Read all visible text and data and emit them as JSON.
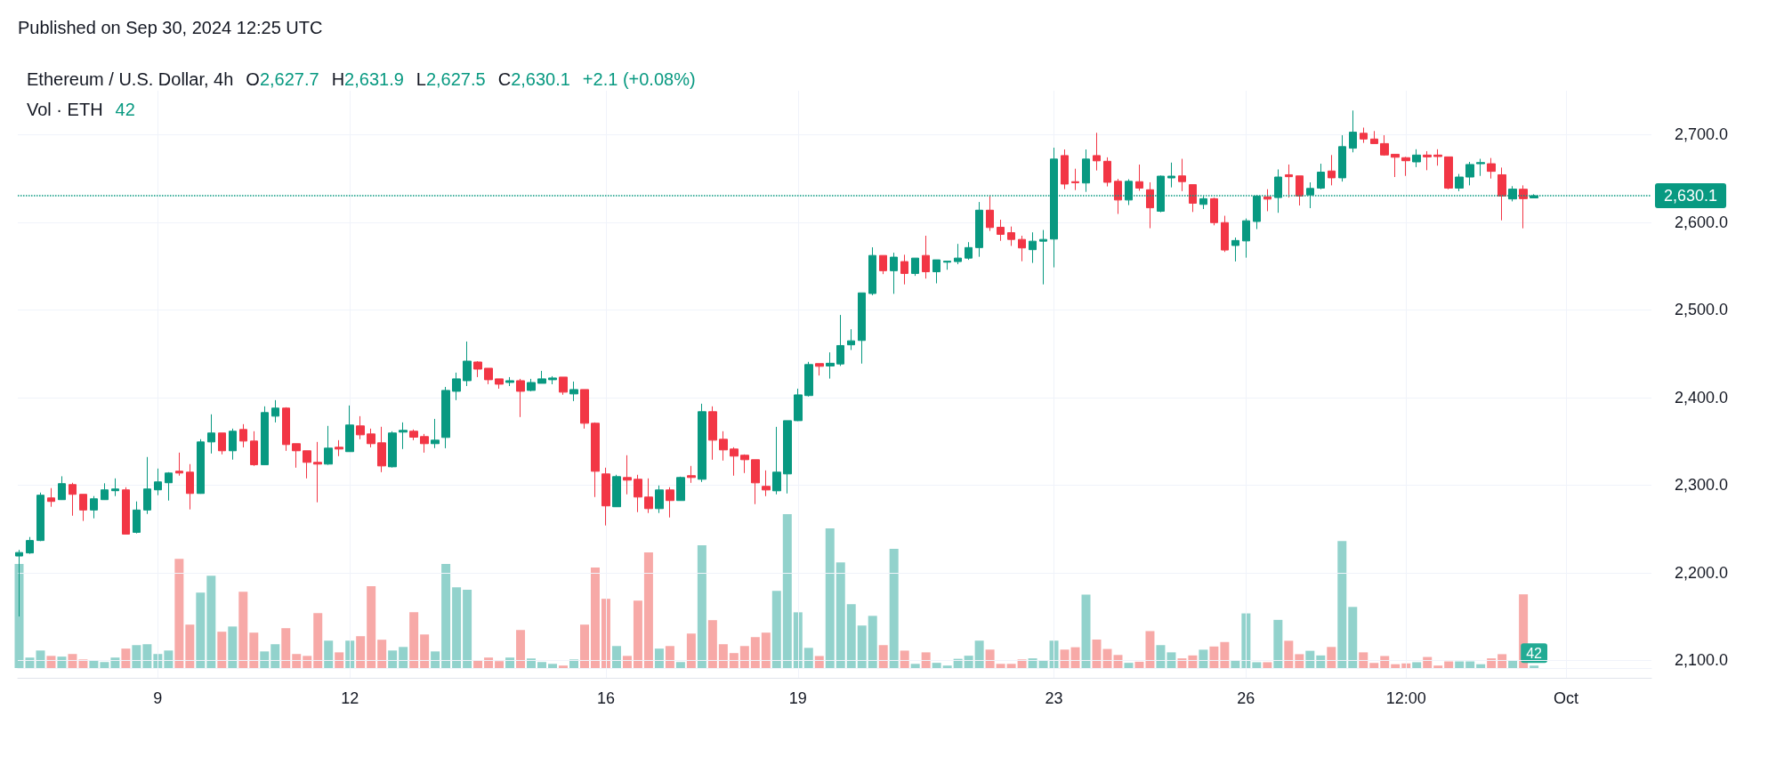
{
  "chart_data": [
    {
      "type": "candlestick",
      "title": "Ethereum / U.S. Dollar, 4h",
      "subtitle": "Published on Sep 30, 2024 12:25 UTC",
      "annotations": [
        "O2,627.7",
        "H2,631.9",
        "L2,627.5",
        "C2,630.1",
        "+2.1 (+0.08%)"
      ],
      "x": [
        "2024-09-06T20:00",
        "2024-09-07T00:00",
        "2024-09-07T04:00",
        "2024-09-07T08:00",
        "2024-09-07T12:00",
        "2024-09-07T16:00",
        "2024-09-07T20:00",
        "2024-09-08T00:00",
        "2024-09-08T04:00",
        "2024-09-08T08:00",
        "2024-09-08T12:00",
        "2024-09-08T16:00",
        "2024-09-08T20:00",
        "2024-09-09T00:00",
        "2024-09-09T04:00",
        "2024-09-09T08:00",
        "2024-09-09T12:00",
        "2024-09-09T16:00",
        "2024-09-09T20:00",
        "2024-09-10T00:00",
        "2024-09-10T04:00",
        "2024-09-10T08:00",
        "2024-09-10T12:00",
        "2024-09-10T16:00",
        "2024-09-10T20:00",
        "2024-09-11T00:00",
        "2024-09-11T04:00",
        "2024-09-11T08:00",
        "2024-09-11T12:00",
        "2024-09-11T16:00",
        "2024-09-11T20:00",
        "2024-09-12T00:00",
        "2024-09-12T04:00",
        "2024-09-12T08:00",
        "2024-09-12T12:00",
        "2024-09-12T16:00",
        "2024-09-12T20:00",
        "2024-09-13T00:00",
        "2024-09-13T04:00",
        "2024-09-13T08:00",
        "2024-09-13T12:00",
        "2024-09-13T16:00",
        "2024-09-13T20:00",
        "2024-09-14T00:00",
        "2024-09-14T04:00",
        "2024-09-14T08:00",
        "2024-09-14T12:00",
        "2024-09-14T16:00",
        "2024-09-14T20:00",
        "2024-09-15T00:00",
        "2024-09-15T04:00",
        "2024-09-15T08:00",
        "2024-09-15T12:00",
        "2024-09-15T16:00",
        "2024-09-15T20:00",
        "2024-09-16T00:00",
        "2024-09-16T04:00",
        "2024-09-16T08:00",
        "2024-09-16T12:00",
        "2024-09-16T16:00",
        "2024-09-16T20:00",
        "2024-09-17T00:00",
        "2024-09-17T04:00",
        "2024-09-17T08:00",
        "2024-09-17T12:00",
        "2024-09-17T16:00",
        "2024-09-17T20:00",
        "2024-09-18T00:00",
        "2024-09-18T04:00",
        "2024-09-18T08:00",
        "2024-09-18T12:00",
        "2024-09-18T16:00",
        "2024-09-18T20:00",
        "2024-09-19T00:00",
        "2024-09-19T04:00",
        "2024-09-19T08:00",
        "2024-09-19T12:00",
        "2024-09-19T16:00",
        "2024-09-19T20:00",
        "2024-09-20T00:00",
        "2024-09-20T04:00",
        "2024-09-20T08:00",
        "2024-09-20T12:00",
        "2024-09-20T16:00",
        "2024-09-20T20:00",
        "2024-09-21T00:00",
        "2024-09-21T04:00",
        "2024-09-21T08:00",
        "2024-09-21T12:00",
        "2024-09-21T16:00",
        "2024-09-21T20:00",
        "2024-09-22T00:00",
        "2024-09-22T04:00",
        "2024-09-22T08:00",
        "2024-09-22T12:00",
        "2024-09-22T16:00",
        "2024-09-22T20:00",
        "2024-09-23T00:00",
        "2024-09-23T04:00",
        "2024-09-23T08:00",
        "2024-09-23T12:00",
        "2024-09-23T16:00",
        "2024-09-23T20:00",
        "2024-09-24T00:00",
        "2024-09-24T04:00",
        "2024-09-24T08:00",
        "2024-09-24T12:00",
        "2024-09-24T16:00",
        "2024-09-24T20:00",
        "2024-09-25T00:00",
        "2024-09-25T04:00",
        "2024-09-25T08:00",
        "2024-09-25T12:00",
        "2024-09-25T16:00",
        "2024-09-25T20:00",
        "2024-09-26T00:00",
        "2024-09-26T04:00",
        "2024-09-26T08:00",
        "2024-09-26T12:00",
        "2024-09-26T16:00",
        "2024-09-26T20:00",
        "2024-09-27T00:00",
        "2024-09-27T04:00",
        "2024-09-27T08:00",
        "2024-09-27T12:00",
        "2024-09-27T16:00",
        "2024-09-27T20:00",
        "2024-09-28T00:00",
        "2024-09-28T04:00",
        "2024-09-28T08:00",
        "2024-09-28T12:00",
        "2024-09-28T16:00",
        "2024-09-28T20:00",
        "2024-09-29T00:00",
        "2024-09-29T04:00",
        "2024-09-29T08:00",
        "2024-09-29T12:00",
        "2024-09-29T16:00",
        "2024-09-29T20:00",
        "2024-09-30T00:00",
        "2024-09-30T04:00",
        "2024-09-30T08:00",
        "2024-09-30T12:00"
      ],
      "ohlc": [
        [
          2219,
          2226,
          2150,
          2223
        ],
        [
          2222.5,
          2240.7,
          2221.5,
          2236.7
        ],
        [
          2236.7,
          2291.4,
          2236,
          2288.4
        ],
        [
          2285.3,
          2296.5,
          2275.2,
          2281.3
        ],
        [
          2283.3,
          2310,
          2283,
          2301.6
        ],
        [
          2300.5,
          2302.6,
          2265,
          2289.4
        ],
        [
          2289.4,
          2289.4,
          2259,
          2271.5
        ],
        [
          2271.5,
          2287.4,
          2262,
          2284.3
        ],
        [
          2283.3,
          2302,
          2283,
          2294.5
        ],
        [
          2293.5,
          2307.6,
          2287.4,
          2295.5
        ],
        [
          2294.5,
          2297.5,
          2244,
          2244
        ],
        [
          2246,
          2281.3,
          2244.8,
          2271.5
        ],
        [
          2271.5,
          2332,
          2267,
          2295.5
        ],
        [
          2294.5,
          2318.8,
          2288.4,
          2303.6
        ],
        [
          2302.6,
          2314.7,
          2282.3,
          2313.7
        ],
        [
          2315.8,
          2337,
          2310.7,
          2313.7
        ],
        [
          2314.7,
          2323.9,
          2272.2,
          2290.4
        ],
        [
          2290.4,
          2352.3,
          2290,
          2349.2
        ],
        [
          2349.2,
          2380.7,
          2336,
          2359.4
        ],
        [
          2359.4,
          2359.4,
          2335,
          2339.1
        ],
        [
          2339.1,
          2364.4,
          2329,
          2361.4
        ],
        [
          2363.4,
          2369.5,
          2343,
          2350.2
        ],
        [
          2350.2,
          2361.4,
          2321.8,
          2323.2
        ],
        [
          2323.2,
          2389.8,
          2323,
          2382.7
        ],
        [
          2378.6,
          2396.9,
          2371.5,
          2387.8
        ],
        [
          2387.8,
          2388.8,
          2339,
          2346.2
        ],
        [
          2347.2,
          2347.2,
          2319.8,
          2339.1
        ],
        [
          2339.1,
          2339.1,
          2307.6,
          2325.9
        ],
        [
          2325.9,
          2349.2,
          2280.3,
          2323.9
        ],
        [
          2323.9,
          2367.5,
          2323,
          2342.1
        ],
        [
          2343.1,
          2351.2,
          2333,
          2341.1
        ],
        [
          2338.1,
          2390.8,
          2338,
          2368.5
        ],
        [
          2367.5,
          2378.6,
          2352.3,
          2357.3
        ],
        [
          2358.3,
          2364.4,
          2343,
          2347.2
        ],
        [
          2348.2,
          2366.5,
          2314.7,
          2321.8
        ],
        [
          2320.8,
          2361.4,
          2320,
          2359.4
        ],
        [
          2360.4,
          2371.5,
          2341.1,
          2362.4
        ],
        [
          2361.4,
          2363.4,
          2351.2,
          2354.6
        ],
        [
          2355.3,
          2358.3,
          2337,
          2347.2
        ],
        [
          2347.2,
          2375.5,
          2342.1,
          2351.2
        ],
        [
          2354.3,
          2412,
          2342,
          2408
        ],
        [
          2407,
          2428.3,
          2396.9,
          2421.2
        ],
        [
          2419.1,
          2463.8,
          2413,
          2441.4
        ],
        [
          2440.4,
          2441.4,
          2423.2,
          2432.3
        ],
        [
          2433.3,
          2433.3,
          2415.1,
          2420.2
        ],
        [
          2421.2,
          2421.2,
          2410,
          2415.1
        ],
        [
          2417.1,
          2423.2,
          2413,
          2419.1
        ],
        [
          2419.1,
          2421.2,
          2377.6,
          2407
        ],
        [
          2408,
          2421.2,
          2407,
          2417
        ],
        [
          2416.1,
          2430.3,
          2416,
          2421.2
        ],
        [
          2420.2,
          2424.2,
          2415,
          2422.2
        ],
        [
          2423.2,
          2423.2,
          2403,
          2406
        ],
        [
          2404,
          2418.1,
          2395.8,
          2409
        ],
        [
          2409,
          2409,
          2364.4,
          2370.5
        ],
        [
          2370.5,
          2371.5,
          2286.3,
          2315.7
        ],
        [
          2312.7,
          2319.8,
          2253.9,
          2276.2
        ],
        [
          2275.2,
          2311.7,
          2275,
          2309.6
        ],
        [
          2308.6,
          2334,
          2289.4,
          2305.6
        ],
        [
          2306.6,
          2311.7,
          2269.1,
          2286.3
        ],
        [
          2286.3,
          2307.6,
          2268.1,
          2273.1
        ],
        [
          2273.1,
          2299.5,
          2268.1,
          2294.4
        ],
        [
          2294.4,
          2297.5,
          2263,
          2282.3
        ],
        [
          2282.3,
          2309.6,
          2282,
          2308.6
        ],
        [
          2310.7,
          2321.8,
          2302.5,
          2308.6
        ],
        [
          2306.6,
          2392.8,
          2303.5,
          2383.7
        ],
        [
          2383.7,
          2389.8,
          2328.9,
          2351.2
        ],
        [
          2352.2,
          2361.4,
          2327.9,
          2340.1
        ],
        [
          2341.1,
          2343.1,
          2310.7,
          2333
        ],
        [
          2334,
          2335,
          2313.7,
          2328.9
        ],
        [
          2328.9,
          2328.9,
          2278.2,
          2302.5
        ],
        [
          2298.5,
          2316.7,
          2287.3,
          2294.4
        ],
        [
          2293.4,
          2366.4,
          2289.4,
          2314.7
        ],
        [
          2312.7,
          2373.5,
          2290.4,
          2373.5
        ],
        [
          2373.5,
          2410,
          2373,
          2402.9
        ],
        [
          2402.1,
          2440.6,
          2401,
          2437.5
        ],
        [
          2438.6,
          2438.6,
          2425,
          2435.5
        ],
        [
          2435.9,
          2451.4,
          2421.5,
          2439
        ],
        [
          2438.2,
          2494.1,
          2435.9,
          2459.2
        ],
        [
          2460,
          2477.8,
          2454.1,
          2464.6
        ],
        [
          2465,
          2519.3,
          2438.6,
          2519.3
        ],
        [
          2518.6,
          2571.3,
          2516.6,
          2562
        ],
        [
          2562,
          2562,
          2540.7,
          2544.6
        ],
        [
          2544.6,
          2565.1,
          2518.2,
          2560.1
        ],
        [
          2555,
          2562.8,
          2529,
          2541.5
        ],
        [
          2541.5,
          2559,
          2538.7,
          2559
        ],
        [
          2562,
          2584.5,
          2535.6,
          2543.4
        ],
        [
          2543.4,
          2557,
          2530.2,
          2557
        ],
        [
          2554.3,
          2555.5,
          2545.7,
          2555.5
        ],
        [
          2555,
          2575.2,
          2552,
          2559
        ],
        [
          2559,
          2577.2,
          2557,
          2571
        ],
        [
          2571,
          2623,
          2560.5,
          2613.7
        ],
        [
          2613.7,
          2630.7,
          2590,
          2593.9
        ],
        [
          2594.2,
          2602.8,
          2578.7,
          2586.1
        ],
        [
          2588,
          2595,
          2572.9,
          2580.3
        ],
        [
          2580.3,
          2584.5,
          2555.4,
          2570.6
        ],
        [
          2568.6,
          2588.4,
          2553.5,
          2578.3
        ],
        [
          2578.3,
          2591.1,
          2529,
          2580.3
        ],
        [
          2580.7,
          2685,
          2548.4,
          2672
        ],
        [
          2676,
          2683,
          2637.7,
          2643.5
        ],
        [
          2646.2,
          2661,
          2636.6,
          2645
        ],
        [
          2644.7,
          2683,
          2634.6,
          2672
        ],
        [
          2676,
          2702,
          2659,
          2670
        ],
        [
          2669.5,
          2674,
          2640.8,
          2645.5
        ],
        [
          2646.6,
          2649.4,
          2609.4,
          2625.3
        ],
        [
          2625.3,
          2649,
          2619.5,
          2646.6
        ],
        [
          2646.2,
          2665.7,
          2635.8,
          2638.9
        ],
        [
          2637,
          2645.5,
          2593.1,
          2616.4
        ],
        [
          2612.5,
          2653.2,
          2611.3,
          2652.5
        ],
        [
          2650.5,
          2668,
          2639.7,
          2652.5
        ],
        [
          2652.8,
          2672.3,
          2635.4,
          2646.3
        ],
        [
          2642.8,
          2642.8,
          2611.6,
          2621.6
        ],
        [
          2620.3,
          2629.8,
          2615,
          2626.8
        ],
        [
          2626.8,
          2628,
          2596.4,
          2599.5
        ],
        [
          2599.5,
          2607.3,
          2566,
          2568.2
        ],
        [
          2573.4,
          2582.5,
          2555.2,
          2579.1
        ],
        [
          2578.6,
          2604.2,
          2559.5,
          2601.6
        ],
        [
          2600.8,
          2631.1,
          2592.1,
          2629.8
        ],
        [
          2629,
          2637.6,
          2612.5,
          2626.3
        ],
        [
          2628.1,
          2660.2,
          2610.7,
          2651.5
        ],
        [
          2654.1,
          2665.8,
          2628.1,
          2651.9
        ],
        [
          2652.8,
          2652.8,
          2619,
          2629.8
        ],
        [
          2631.1,
          2645.4,
          2616,
          2638.5
        ],
        [
          2638.9,
          2666.7,
          2637.6,
          2657.1
        ],
        [
          2658.4,
          2676.6,
          2642,
          2650.6
        ],
        [
          2650.6,
          2699.2,
          2646.3,
          2686.2
        ],
        [
          2684.4,
          2727.4,
          2679.7,
          2702.7
        ],
        [
          2701.4,
          2707.9,
          2690.5,
          2694.9
        ],
        [
          2694.9,
          2704,
          2689.7,
          2689.7
        ],
        [
          2689.7,
          2699.2,
          2675.8,
          2676.7
        ],
        [
          2677.5,
          2677.5,
          2651.5,
          2674.1
        ],
        [
          2673.6,
          2674.5,
          2652.8,
          2670.1
        ],
        [
          2668.8,
          2683.2,
          2662.8,
          2676.6
        ],
        [
          2676.6,
          2681,
          2659.3,
          2674.5
        ],
        [
          2676.6,
          2683.2,
          2664.5,
          2674.9
        ],
        [
          2674.5,
          2674.5,
          2637.6,
          2638.9
        ],
        [
          2638.9,
          2655,
          2635.4,
          2651.5
        ],
        [
          2651.5,
          2668.8,
          2642,
          2665.8
        ],
        [
          2666.7,
          2672.3,
          2652.8,
          2668
        ],
        [
          2666.7,
          2673.2,
          2649.8,
          2658
        ],
        [
          2654.1,
          2662.3,
          2602.1,
          2629.8
        ],
        [
          2626.5,
          2641.1,
          2623.7,
          2637.7
        ],
        [
          2637.6,
          2642,
          2593,
          2626.8
        ],
        [
          2627.7,
          2631.9,
          2627.5,
          2630.1
        ]
      ],
      "colors": [
        "#089981",
        "#089981",
        "#089981",
        "#f23645",
        "#089981",
        "#f23645",
        "#f23645",
        "#089981",
        "#089981",
        "#089981",
        "#f23645",
        "#089981",
        "#089981",
        "#089981",
        "#089981",
        "#f23645",
        "#f23645",
        "#089981",
        "#089981",
        "#f23645",
        "#089981",
        "#f23645",
        "#f23645",
        "#089981",
        "#089981",
        "#f23645",
        "#f23645",
        "#f23645",
        "#f23645",
        "#089981",
        "#f23645",
        "#089981",
        "#f23645",
        "#f23645",
        "#f23645",
        "#089981",
        "#089981",
        "#f23645",
        "#f23645",
        "#089981",
        "#089981",
        "#089981",
        "#089981",
        "#f23645",
        "#f23645",
        "#f23645",
        "#089981",
        "#f23645",
        "#089981",
        "#089981",
        "#089981",
        "#f23645",
        "#089981",
        "#f23645",
        "#f23645",
        "#f23645",
        "#089981",
        "#f23645",
        "#f23645",
        "#f23645",
        "#089981",
        "#f23645",
        "#089981",
        "#f23645",
        "#089981",
        "#f23645",
        "#f23645",
        "#f23645",
        "#f23645",
        "#f23645",
        "#f23645",
        "#089981",
        "#089981",
        "#089981",
        "#089981",
        "#f23645",
        "#089981",
        "#089981",
        "#089981",
        "#089981",
        "#089981",
        "#f23645",
        "#089981",
        "#f23645",
        "#089981",
        "#f23645",
        "#089981",
        "#089981",
        "#089981",
        "#089981",
        "#089981",
        "#f23645",
        "#f23645",
        "#f23645",
        "#f23645",
        "#089981",
        "#089981",
        "#089981",
        "#f23645",
        "#f23645",
        "#089981",
        "#f23645",
        "#f23645",
        "#f23645",
        "#089981",
        "#f23645",
        "#f23645",
        "#089981",
        "#089981",
        "#f23645",
        "#f23645",
        "#089981",
        "#f23645",
        "#f23645",
        "#089981",
        "#089981",
        "#089981",
        "#f23645",
        "#089981",
        "#f23645",
        "#f23645",
        "#089981",
        "#089981",
        "#f23645",
        "#089981",
        "#089981",
        "#f23645",
        "#f23645",
        "#f23645",
        "#f23645",
        "#f23645",
        "#089981",
        "#f23645",
        "#f23645",
        "#f23645",
        "#089981",
        "#089981",
        "#089981",
        "#f23645",
        "#f23645",
        "#089981",
        "#f23645",
        "#089981"
      ],
      "xlim": [
        "2024-09-06T19:30",
        "2024-10-02T08:00"
      ],
      "xticks": [
        {
          "value": "2024-09-09",
          "label": "9"
        },
        {
          "value": "2024-09-12",
          "label": "12"
        },
        {
          "value": "2024-09-16",
          "label": "16"
        },
        {
          "value": "2024-09-19",
          "label": "19"
        },
        {
          "value": "2024-09-23",
          "label": "23"
        },
        {
          "value": "2024-09-26",
          "label": "26"
        },
        {
          "value": "2024-09-28T12:00",
          "label": "12:00"
        },
        {
          "value": "2024-10-01",
          "label": "Oct"
        }
      ],
      "ylim": [
        2080,
        2750
      ],
      "yticks": [
        {
          "value": 2100,
          "label": "2,100.0"
        },
        {
          "value": 2200,
          "label": "2,200.0"
        },
        {
          "value": 2300,
          "label": "2,300.0"
        },
        {
          "value": 2400,
          "label": "2,400.0"
        },
        {
          "value": 2500,
          "label": "2,500.0"
        },
        {
          "value": 2600,
          "label": "2,600.0"
        },
        {
          "value": 2700,
          "label": "2,700.0"
        }
      ],
      "ref_lines": [
        {
          "axis": "y",
          "value": 2630.1,
          "label": "2,630.1",
          "color": "#089981",
          "line_style": "dotted"
        }
      ],
      "grid": true
    },
    {
      "type": "bar",
      "title": "Vol · ETH",
      "annotations": [
        "42"
      ],
      "x": [
        "2024-09-06T20:00",
        "2024-09-07T00:00",
        "2024-09-07T04:00",
        "2024-09-07T08:00",
        "2024-09-07T12:00",
        "2024-09-07T16:00",
        "2024-09-07T20:00",
        "2024-09-08T00:00",
        "2024-09-08T04:00",
        "2024-09-08T08:00",
        "2024-09-08T12:00",
        "2024-09-08T16:00",
        "2024-09-08T20:00",
        "2024-09-09T00:00",
        "2024-09-09T04:00",
        "2024-09-09T08:00",
        "2024-09-09T12:00",
        "2024-09-09T16:00",
        "2024-09-09T20:00",
        "2024-09-10T00:00",
        "2024-09-10T04:00",
        "2024-09-10T08:00",
        "2024-09-10T12:00",
        "2024-09-10T16:00",
        "2024-09-10T20:00",
        "2024-09-11T00:00",
        "2024-09-11T04:00",
        "2024-09-11T08:00",
        "2024-09-11T12:00",
        "2024-09-11T16:00",
        "2024-09-11T20:00",
        "2024-09-12T00:00",
        "2024-09-12T04:00",
        "2024-09-12T08:00",
        "2024-09-12T12:00",
        "2024-09-12T16:00",
        "2024-09-12T20:00",
        "2024-09-13T00:00",
        "2024-09-13T04:00",
        "2024-09-13T08:00",
        "2024-09-13T12:00",
        "2024-09-13T16:00",
        "2024-09-13T20:00",
        "2024-09-14T00:00",
        "2024-09-14T04:00",
        "2024-09-14T08:00",
        "2024-09-14T12:00",
        "2024-09-14T16:00",
        "2024-09-14T20:00",
        "2024-09-15T00:00",
        "2024-09-15T04:00",
        "2024-09-15T08:00",
        "2024-09-15T12:00",
        "2024-09-15T16:00",
        "2024-09-15T20:00",
        "2024-09-16T00:00",
        "2024-09-16T04:00",
        "2024-09-16T08:00",
        "2024-09-16T12:00",
        "2024-09-16T16:00",
        "2024-09-16T20:00",
        "2024-09-17T00:00",
        "2024-09-17T04:00",
        "2024-09-17T08:00",
        "2024-09-17T12:00",
        "2024-09-17T16:00",
        "2024-09-17T20:00",
        "2024-09-18T00:00",
        "2024-09-18T04:00",
        "2024-09-18T08:00",
        "2024-09-18T12:00",
        "2024-09-18T16:00",
        "2024-09-18T20:00",
        "2024-09-19T00:00",
        "2024-09-19T04:00",
        "2024-09-19T08:00",
        "2024-09-19T12:00",
        "2024-09-19T16:00",
        "2024-09-19T20:00",
        "2024-09-20T00:00",
        "2024-09-20T04:00",
        "2024-09-20T08:00",
        "2024-09-20T12:00",
        "2024-09-20T16:00",
        "2024-09-20T20:00",
        "2024-09-21T00:00",
        "2024-09-21T04:00",
        "2024-09-21T08:00",
        "2024-09-21T12:00",
        "2024-09-21T16:00",
        "2024-09-21T20:00",
        "2024-09-22T00:00",
        "2024-09-22T04:00",
        "2024-09-22T08:00",
        "2024-09-22T12:00",
        "2024-09-22T16:00",
        "2024-09-22T20:00",
        "2024-09-23T00:00",
        "2024-09-23T04:00",
        "2024-09-23T08:00",
        "2024-09-23T12:00",
        "2024-09-23T16:00",
        "2024-09-23T20:00",
        "2024-09-24T00:00",
        "2024-09-24T04:00",
        "2024-09-24T08:00",
        "2024-09-24T12:00",
        "2024-09-24T16:00",
        "2024-09-24T20:00",
        "2024-09-25T00:00",
        "2024-09-25T04:00",
        "2024-09-25T08:00",
        "2024-09-25T12:00",
        "2024-09-25T16:00",
        "2024-09-25T20:00",
        "2024-09-26T00:00",
        "2024-09-26T04:00",
        "2024-09-26T08:00",
        "2024-09-26T12:00",
        "2024-09-26T16:00",
        "2024-09-26T20:00",
        "2024-09-27T00:00",
        "2024-09-27T04:00",
        "2024-09-27T08:00",
        "2024-09-27T12:00",
        "2024-09-27T16:00",
        "2024-09-27T20:00",
        "2024-09-28T00:00",
        "2024-09-28T04:00",
        "2024-09-28T08:00",
        "2024-09-28T12:00",
        "2024-09-28T16:00",
        "2024-09-28T20:00",
        "2024-09-29T00:00",
        "2024-09-29T04:00",
        "2024-09-29T08:00",
        "2024-09-29T12:00",
        "2024-09-29T16:00",
        "2024-09-29T20:00",
        "2024-09-30T00:00",
        "2024-09-30T04:00",
        "2024-09-30T08:00",
        "2024-09-30T12:00"
      ],
      "values": [
        1816,
        183,
        306,
        212,
        199,
        245,
        150,
        134,
        105,
        183,
        339,
        400,
        416,
        245,
        306,
        1908,
        758,
        1317,
        1612,
        634,
        725,
        1333,
        618,
        290,
        416,
        696,
        245,
        212,
        959,
        478,
        274,
        478,
        556,
        1427,
        494,
        306,
        368,
        975,
        586,
        290,
        1816,
        1411,
        1365,
        134,
        183,
        121,
        183,
        664,
        167,
        105,
        73,
        43,
        150,
        758,
        1755,
        1209,
        384,
        212,
        1177,
        2018,
        339,
        384,
        105,
        602,
        2142,
        836,
        416,
        261,
        384,
        540,
        618,
        1349,
        2687,
        973,
        352,
        210,
        2437,
        1846,
        1115,
        742,
        911,
        400,
        2080,
        304,
        73,
        274,
        91,
        43,
        161,
        215,
        478,
        322,
        73,
        73,
        150,
        169,
        140,
        478,
        322,
        363,
        1282,
        497,
        333,
        228,
        91,
        110,
        645,
        400,
        274,
        169,
        220,
        320,
        376,
        454,
        134,
        954,
        102,
        102,
        841,
        476,
        242,
        301,
        220,
        368,
        2217,
        1067,
        274,
        89,
        210,
        67,
        81,
        102,
        193,
        43,
        116,
        116,
        116,
        67,
        169,
        242,
        129,
        1287,
        42
      ],
      "value_labels": [
        null,
        null,
        null,
        null,
        null,
        null,
        null,
        null,
        null,
        null,
        null,
        null,
        null,
        null,
        null,
        null,
        null,
        null,
        null,
        null,
        null,
        null,
        null,
        null,
        null,
        null,
        null,
        null,
        null,
        null,
        null,
        null,
        null,
        null,
        null,
        null,
        null,
        null,
        null,
        null,
        null,
        null,
        null,
        null,
        null,
        null,
        null,
        null,
        null,
        null,
        null,
        null,
        null,
        null,
        null,
        null,
        null,
        null,
        null,
        null,
        null,
        null,
        null,
        null,
        null,
        null,
        null,
        null,
        null,
        null,
        null,
        null,
        null,
        null,
        null,
        null,
        null,
        null,
        null,
        null,
        null,
        null,
        null,
        null,
        null,
        null,
        null,
        null,
        null,
        null,
        null,
        null,
        null,
        null,
        null,
        null,
        null,
        null,
        null,
        null,
        null,
        null,
        null,
        null,
        null,
        null,
        null,
        null,
        null,
        null,
        null,
        null,
        null,
        null,
        null,
        null,
        null,
        null,
        null,
        null,
        null,
        null,
        null,
        null,
        null,
        null,
        null,
        null,
        null,
        null,
        null,
        null,
        null,
        null,
        null,
        null,
        null,
        null,
        null,
        null,
        null,
        null,
        "42"
      ],
      "colors": [
        "#92d2cc",
        "#92d2cc",
        "#92d2cc",
        "#f7a9a7",
        "#92d2cc",
        "#f7a9a7",
        "#f7a9a7",
        "#92d2cc",
        "#92d2cc",
        "#92d2cc",
        "#f7a9a7",
        "#92d2cc",
        "#92d2cc",
        "#92d2cc",
        "#92d2cc",
        "#f7a9a7",
        "#f7a9a7",
        "#92d2cc",
        "#92d2cc",
        "#f7a9a7",
        "#92d2cc",
        "#f7a9a7",
        "#f7a9a7",
        "#92d2cc",
        "#92d2cc",
        "#f7a9a7",
        "#f7a9a7",
        "#f7a9a7",
        "#f7a9a7",
        "#92d2cc",
        "#f7a9a7",
        "#92d2cc",
        "#f7a9a7",
        "#f7a9a7",
        "#f7a9a7",
        "#92d2cc",
        "#92d2cc",
        "#f7a9a7",
        "#f7a9a7",
        "#92d2cc",
        "#92d2cc",
        "#92d2cc",
        "#92d2cc",
        "#f7a9a7",
        "#f7a9a7",
        "#f7a9a7",
        "#92d2cc",
        "#f7a9a7",
        "#92d2cc",
        "#92d2cc",
        "#92d2cc",
        "#f7a9a7",
        "#92d2cc",
        "#f7a9a7",
        "#f7a9a7",
        "#f7a9a7",
        "#92d2cc",
        "#f7a9a7",
        "#f7a9a7",
        "#f7a9a7",
        "#92d2cc",
        "#f7a9a7",
        "#92d2cc",
        "#f7a9a7",
        "#92d2cc",
        "#f7a9a7",
        "#f7a9a7",
        "#f7a9a7",
        "#f7a9a7",
        "#f7a9a7",
        "#f7a9a7",
        "#92d2cc",
        "#92d2cc",
        "#92d2cc",
        "#92d2cc",
        "#f7a9a7",
        "#92d2cc",
        "#92d2cc",
        "#92d2cc",
        "#92d2cc",
        "#92d2cc",
        "#f7a9a7",
        "#92d2cc",
        "#f7a9a7",
        "#92d2cc",
        "#f7a9a7",
        "#92d2cc",
        "#92d2cc",
        "#92d2cc",
        "#92d2cc",
        "#92d2cc",
        "#f7a9a7",
        "#f7a9a7",
        "#f7a9a7",
        "#f7a9a7",
        "#92d2cc",
        "#92d2cc",
        "#92d2cc",
        "#f7a9a7",
        "#f7a9a7",
        "#92d2cc",
        "#f7a9a7",
        "#f7a9a7",
        "#f7a9a7",
        "#92d2cc",
        "#f7a9a7",
        "#f7a9a7",
        "#92d2cc",
        "#92d2cc",
        "#f7a9a7",
        "#f7a9a7",
        "#92d2cc",
        "#f7a9a7",
        "#f7a9a7",
        "#92d2cc",
        "#92d2cc",
        "#92d2cc",
        "#f7a9a7",
        "#92d2cc",
        "#f7a9a7",
        "#f7a9a7",
        "#92d2cc",
        "#92d2cc",
        "#f7a9a7",
        "#92d2cc",
        "#92d2cc",
        "#f7a9a7",
        "#f7a9a7",
        "#f7a9a7",
        "#f7a9a7",
        "#f7a9a7",
        "#92d2cc",
        "#f7a9a7",
        "#f7a9a7",
        "#f7a9a7",
        "#92d2cc",
        "#92d2cc",
        "#92d2cc",
        "#f7a9a7",
        "#f7a9a7",
        "#92d2cc",
        "#f7a9a7",
        "#92d2cc"
      ],
      "tick_labels": false,
      "xlim": [
        "2024-09-06T19:30",
        "2024-10-02T08:00"
      ],
      "xticks": [
        {
          "value": "2024-09-09",
          "label": null
        },
        {
          "value": "2024-09-12",
          "label": null
        },
        {
          "value": "2024-09-16",
          "label": null
        },
        {
          "value": "2024-09-19",
          "label": null
        },
        {
          "value": "2024-09-23",
          "label": null
        },
        {
          "value": "2024-09-26",
          "label": null
        },
        {
          "value": "2024-09-28T12:00",
          "label": null
        },
        {
          "value": "2024-10-01",
          "label": null
        }
      ]
    }
  ]
}
